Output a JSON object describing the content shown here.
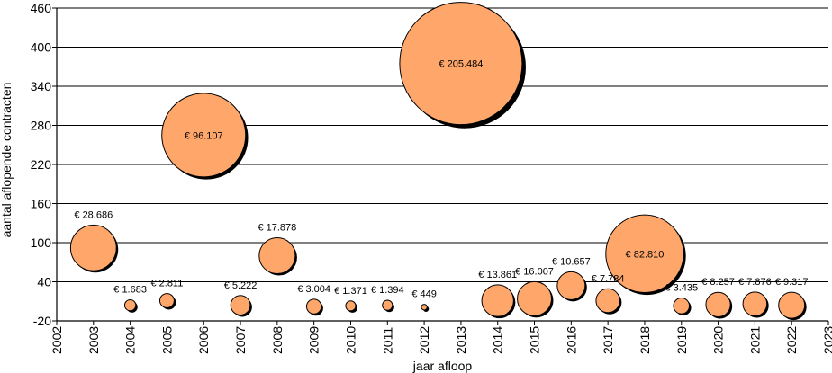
{
  "chart_data": {
    "type": "bubble",
    "title": "",
    "xlabel": "jaar afloop",
    "ylabel": "aantal aflopende contracten",
    "xlim": [
      2002,
      2023
    ],
    "ylim": [
      -20,
      460
    ],
    "xticks": [
      2002,
      2003,
      2004,
      2005,
      2006,
      2007,
      2008,
      2009,
      2010,
      2011,
      2012,
      2013,
      2014,
      2015,
      2016,
      2017,
      2018,
      2019,
      2020,
      2021,
      2022,
      2023
    ],
    "yticks": [
      -20,
      40,
      100,
      160,
      220,
      280,
      340,
      400,
      460
    ],
    "grid": "horizontal",
    "bubble_color": "#FFA76B",
    "points": [
      {
        "x": 2003,
        "y": 92,
        "label": "€ 28.686"
      },
      {
        "x": 2004,
        "y": 4,
        "label": "€ 1.683"
      },
      {
        "x": 2005,
        "y": 11,
        "label": "€ 2.811"
      },
      {
        "x": 2006,
        "y": 265,
        "label": "€ 96.107"
      },
      {
        "x": 2007,
        "y": 4,
        "label": "€ 5.222"
      },
      {
        "x": 2008,
        "y": 80,
        "label": "€ 17.878"
      },
      {
        "x": 2009,
        "y": 2,
        "label": "€ 3.004"
      },
      {
        "x": 2010,
        "y": 3,
        "label": "€ 1.371"
      },
      {
        "x": 2011,
        "y": 4,
        "label": "€ 1.394"
      },
      {
        "x": 2012,
        "y": 1,
        "label": "€ 449"
      },
      {
        "x": 2013,
        "y": 375,
        "label": "€ 205.484"
      },
      {
        "x": 2014,
        "y": 11,
        "label": "€ 13.861"
      },
      {
        "x": 2015,
        "y": 14,
        "label": "€ 16.007"
      },
      {
        "x": 2016,
        "y": 34,
        "label": "€ 10.657"
      },
      {
        "x": 2017,
        "y": 11,
        "label": "€ 7.784"
      },
      {
        "x": 2018,
        "y": 83,
        "label": "€ 82.810"
      },
      {
        "x": 2019,
        "y": 3,
        "label": "€ 3.435"
      },
      {
        "x": 2020,
        "y": 5,
        "label": "€ 8.257"
      },
      {
        "x": 2021,
        "y": 6,
        "label": "€ 7.876"
      },
      {
        "x": 2022,
        "y": 4,
        "label": "€ 9.317"
      }
    ]
  }
}
